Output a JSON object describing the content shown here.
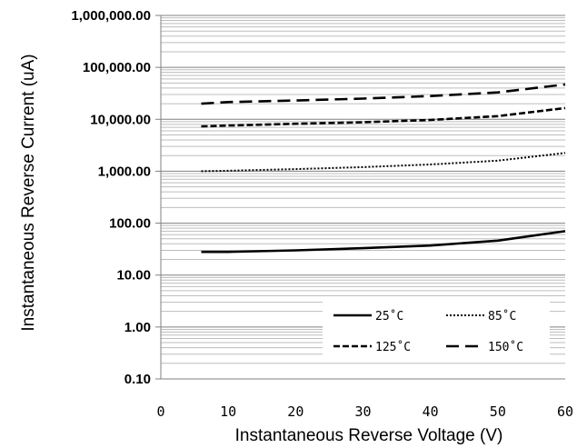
{
  "chart_data": {
    "type": "line",
    "xlabel": "Instantaneous Reverse Voltage (V)",
    "ylabel": "Instantaneous Reverse Current (uA)",
    "xlim": [
      0,
      60
    ],
    "ylim": [
      0.1,
      1000000
    ],
    "y_scale": "log",
    "grid": true,
    "legend_position": "bottom-right",
    "x_ticks": [
      "0",
      "10",
      "20",
      "30",
      "40",
      "50",
      "60"
    ],
    "y_ticks": [
      "0.10",
      "1.00",
      "10.00",
      "100.00",
      "1,000.00",
      "10,000.00",
      "100,000.00",
      "1,000,000.00"
    ],
    "series": [
      {
        "name": "25˚C",
        "style": "solid",
        "x": [
          6,
          10,
          20,
          30,
          40,
          50,
          60
        ],
        "values": [
          28,
          28,
          30,
          33,
          37,
          46,
          70
        ]
      },
      {
        "name": "85˚C",
        "style": "dotted",
        "x": [
          6,
          10,
          20,
          30,
          40,
          50,
          60
        ],
        "values": [
          1000,
          1020,
          1100,
          1200,
          1350,
          1600,
          2250
        ]
      },
      {
        "name": "125˚C",
        "style": "short-dash",
        "x": [
          6,
          10,
          20,
          30,
          40,
          50,
          60
        ],
        "values": [
          7300,
          7600,
          8200,
          8800,
          9700,
          11500,
          16500
        ]
      },
      {
        "name": "150˚C",
        "style": "long-dash",
        "x": [
          6,
          10,
          20,
          30,
          40,
          50,
          60
        ],
        "values": [
          20000,
          21500,
          23000,
          25000,
          28000,
          33000,
          47000
        ]
      }
    ]
  }
}
